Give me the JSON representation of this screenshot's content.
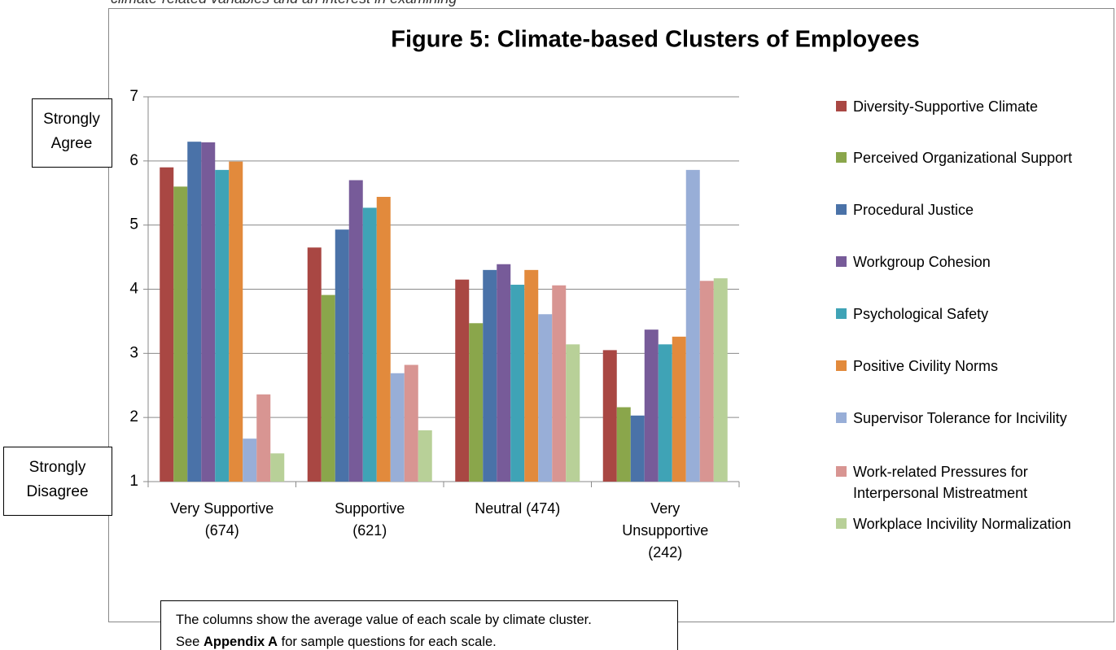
{
  "document": {
    "top_text": "climate-related variables and an interest in examining",
    "agree_label": "Strongly Agree",
    "disagree_label": "Strongly Disagree",
    "note": {
      "line1": "The columns show the average value of each scale by climate cluster.",
      "line2_start": "See",
      "line2_bold": "Appendix A",
      "line2_end": "for sample questions for each scale."
    }
  },
  "chart_data": {
    "type": "bar",
    "title": "Figure 5: Climate-based Clusters of Employees",
    "categories": [
      "Very Supportive\n(674)",
      "Supportive\n(621)",
      "Neutral (474)",
      "Very\nUnsupportive\n(242)"
    ],
    "ylim": [
      1,
      7
    ],
    "yticks": [
      1,
      2,
      3,
      4,
      5,
      6,
      7
    ],
    "grid": true,
    "legend": "right",
    "series": [
      {
        "name": "Diversity-Supportive Climate",
        "color": "#a94743",
        "values": [
          5.9,
          4.65,
          4.15,
          3.05
        ]
      },
      {
        "name": "Perceived Organizational Support",
        "color": "#8aa64b",
        "values": [
          5.6,
          3.91,
          3.47,
          2.16
        ]
      },
      {
        "name": "Procedural Justice",
        "color": "#4a72a8",
        "values": [
          6.3,
          4.93,
          4.3,
          2.03
        ]
      },
      {
        "name": "Workgroup Cohesion",
        "color": "#775b99",
        "values": [
          6.29,
          5.7,
          4.39,
          3.37
        ]
      },
      {
        "name": "Psychological Safety",
        "color": "#3fa3b6",
        "values": [
          5.86,
          5.27,
          4.07,
          3.14
        ]
      },
      {
        "name": "Positive Civility Norms",
        "color": "#e28a3c",
        "values": [
          5.99,
          5.44,
          4.3,
          3.26
        ]
      },
      {
        "name": "Supervisor Tolerance for Incivility",
        "color": "#98aed7",
        "values": [
          1.67,
          2.69,
          3.61,
          5.86
        ]
      },
      {
        "name": "Work-related Pressures for Interpersonal Mistreatment",
        "color": "#d89592",
        "values": [
          2.36,
          2.82,
          4.06,
          4.13
        ]
      },
      {
        "name": "Workplace Incivility Normalization",
        "color": "#b8d098",
        "values": [
          1.44,
          1.8,
          3.14,
          4.17
        ]
      }
    ]
  }
}
